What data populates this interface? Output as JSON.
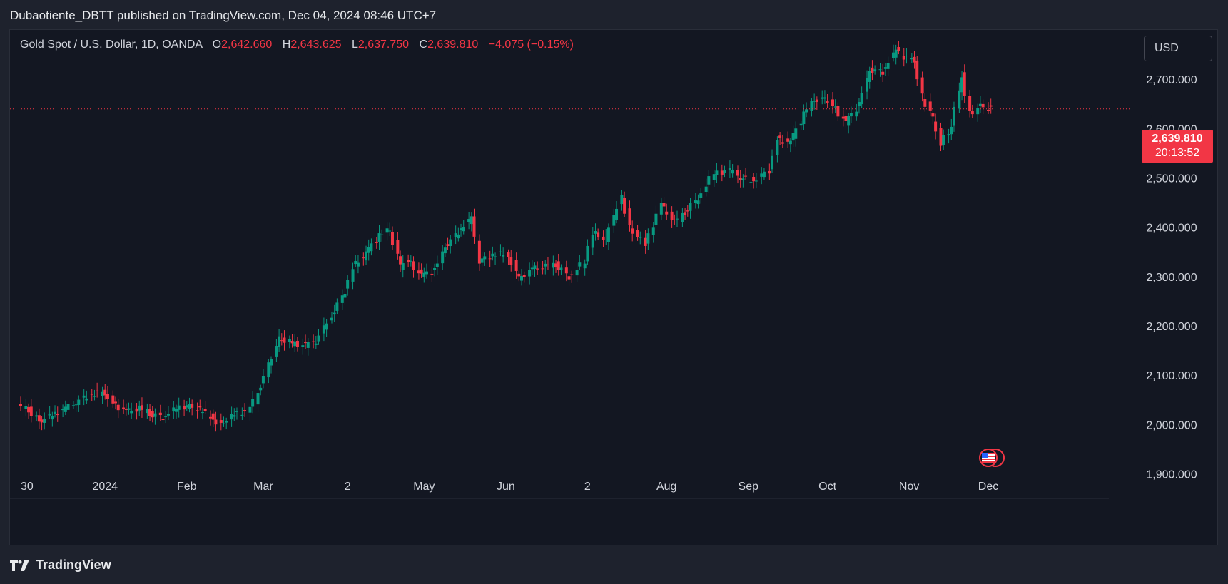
{
  "header": {
    "published_by": "Dubaotiente_DBTT published on TradingView.com, Dec 04, 2024 08:46 UTC+7"
  },
  "legend": {
    "symbol": "Gold Spot / U.S. Dollar, 1D, OANDA",
    "open_label": "O",
    "open": "2,642.660",
    "high_label": "H",
    "high": "2,643.625",
    "low_label": "L",
    "low": "2,637.750",
    "close_label": "C",
    "close": "2,639.810",
    "change": "−4.075 (−0.15%)"
  },
  "currency_button": {
    "label": "USD"
  },
  "price_label": {
    "price": "2,639.810",
    "countdown": "20:13:52"
  },
  "brand": {
    "name": "TradingView"
  },
  "colors": {
    "up": "#089981",
    "down": "#f23645",
    "background": "#131722",
    "text": "#d1d4dc"
  },
  "icons": [
    "us-flag-icon",
    "event-marker-icon",
    "tradingview-logo-icon"
  ],
  "chart_data": {
    "type": "candlestick",
    "title": "Gold Spot / U.S. Dollar, 1D, OANDA",
    "ylim": [
      1850,
      2800
    ],
    "y_ticks": [
      "2,700.000",
      "2,600.000",
      "2,500.000",
      "2,400.000",
      "2,300.000",
      "2,200.000",
      "2,100.000",
      "2,000.000",
      "1,900.000"
    ],
    "y_tick_values": [
      2700,
      2600,
      2500,
      2400,
      2300,
      2200,
      2100,
      2000,
      1900
    ],
    "x_ticks": [
      "30",
      "2024",
      "Feb",
      "Mar",
      "2",
      "May",
      "Jun",
      "2",
      "Aug",
      "Sep",
      "Oct",
      "Nov",
      "Dec"
    ],
    "x_tick_dates": [
      "2023-11-30",
      "2024-01-01",
      "2024-02-01",
      "2024-03-01",
      "2024-04-02",
      "2024-05-01",
      "2024-06-01",
      "2024-07-02",
      "2024-08-01",
      "2024-09-01",
      "2024-10-01",
      "2024-11-01",
      "2024-12-01"
    ],
    "last_price": 2639.81,
    "series": [
      {
        "date": "2023-11-30",
        "value": 2038
      },
      {
        "date": "2023-12-04",
        "value": 2030
      },
      {
        "date": "2023-12-08",
        "value": 2005
      },
      {
        "date": "2023-12-13",
        "value": 2020
      },
      {
        "date": "2023-12-18",
        "value": 2032
      },
      {
        "date": "2023-12-22",
        "value": 2045
      },
      {
        "date": "2023-12-28",
        "value": 2062
      },
      {
        "date": "2024-01-02",
        "value": 2065
      },
      {
        "date": "2024-01-05",
        "value": 2045
      },
      {
        "date": "2024-01-10",
        "value": 2025
      },
      {
        "date": "2024-01-15",
        "value": 2033
      },
      {
        "date": "2024-01-19",
        "value": 2022
      },
      {
        "date": "2024-01-24",
        "value": 2015
      },
      {
        "date": "2024-01-29",
        "value": 2033
      },
      {
        "date": "2024-02-02",
        "value": 2038
      },
      {
        "date": "2024-02-07",
        "value": 2030
      },
      {
        "date": "2024-02-12",
        "value": 2012
      },
      {
        "date": "2024-02-15",
        "value": 2000
      },
      {
        "date": "2024-02-20",
        "value": 2020
      },
      {
        "date": "2024-02-26",
        "value": 2030
      },
      {
        "date": "2024-03-01",
        "value": 2080
      },
      {
        "date": "2024-03-04",
        "value": 2120
      },
      {
        "date": "2024-03-08",
        "value": 2175
      },
      {
        "date": "2024-03-13",
        "value": 2165
      },
      {
        "date": "2024-03-18",
        "value": 2160
      },
      {
        "date": "2024-03-22",
        "value": 2170
      },
      {
        "date": "2024-03-28",
        "value": 2220
      },
      {
        "date": "2024-04-02",
        "value": 2270
      },
      {
        "date": "2024-04-05",
        "value": 2320
      },
      {
        "date": "2024-04-10",
        "value": 2345
      },
      {
        "date": "2024-04-15",
        "value": 2385
      },
      {
        "date": "2024-04-19",
        "value": 2395
      },
      {
        "date": "2024-04-23",
        "value": 2320
      },
      {
        "date": "2024-04-26",
        "value": 2335
      },
      {
        "date": "2024-05-01",
        "value": 2300
      },
      {
        "date": "2024-05-06",
        "value": 2315
      },
      {
        "date": "2024-05-10",
        "value": 2360
      },
      {
        "date": "2024-05-15",
        "value": 2390
      },
      {
        "date": "2024-05-20",
        "value": 2420
      },
      {
        "date": "2024-05-23",
        "value": 2330
      },
      {
        "date": "2024-05-28",
        "value": 2345
      },
      {
        "date": "2024-06-03",
        "value": 2345
      },
      {
        "date": "2024-06-07",
        "value": 2295
      },
      {
        "date": "2024-06-12",
        "value": 2315
      },
      {
        "date": "2024-06-17",
        "value": 2320
      },
      {
        "date": "2024-06-21",
        "value": 2325
      },
      {
        "date": "2024-06-26",
        "value": 2300
      },
      {
        "date": "2024-07-02",
        "value": 2330
      },
      {
        "date": "2024-07-05",
        "value": 2390
      },
      {
        "date": "2024-07-10",
        "value": 2375
      },
      {
        "date": "2024-07-16",
        "value": 2465
      },
      {
        "date": "2024-07-19",
        "value": 2400
      },
      {
        "date": "2024-07-25",
        "value": 2365
      },
      {
        "date": "2024-07-31",
        "value": 2445
      },
      {
        "date": "2024-08-05",
        "value": 2410
      },
      {
        "date": "2024-08-09",
        "value": 2430
      },
      {
        "date": "2024-08-14",
        "value": 2460
      },
      {
        "date": "2024-08-20",
        "value": 2510
      },
      {
        "date": "2024-08-26",
        "value": 2515
      },
      {
        "date": "2024-08-30",
        "value": 2500
      },
      {
        "date": "2024-09-04",
        "value": 2495
      },
      {
        "date": "2024-09-10",
        "value": 2515
      },
      {
        "date": "2024-09-13",
        "value": 2580
      },
      {
        "date": "2024-09-18",
        "value": 2570
      },
      {
        "date": "2024-09-23",
        "value": 2630
      },
      {
        "date": "2024-09-27",
        "value": 2660
      },
      {
        "date": "2024-10-01",
        "value": 2660
      },
      {
        "date": "2024-10-04",
        "value": 2650
      },
      {
        "date": "2024-10-09",
        "value": 2610
      },
      {
        "date": "2024-10-14",
        "value": 2650
      },
      {
        "date": "2024-10-18",
        "value": 2720
      },
      {
        "date": "2024-10-23",
        "value": 2715
      },
      {
        "date": "2024-10-28",
        "value": 2760
      },
      {
        "date": "2024-10-31",
        "value": 2745
      },
      {
        "date": "2024-11-04",
        "value": 2740
      },
      {
        "date": "2024-11-07",
        "value": 2665
      },
      {
        "date": "2024-11-11",
        "value": 2620
      },
      {
        "date": "2024-11-14",
        "value": 2570
      },
      {
        "date": "2024-11-18",
        "value": 2605
      },
      {
        "date": "2024-11-22",
        "value": 2710
      },
      {
        "date": "2024-11-25",
        "value": 2630
      },
      {
        "date": "2024-11-29",
        "value": 2645
      },
      {
        "date": "2024-12-03",
        "value": 2640
      }
    ]
  }
}
